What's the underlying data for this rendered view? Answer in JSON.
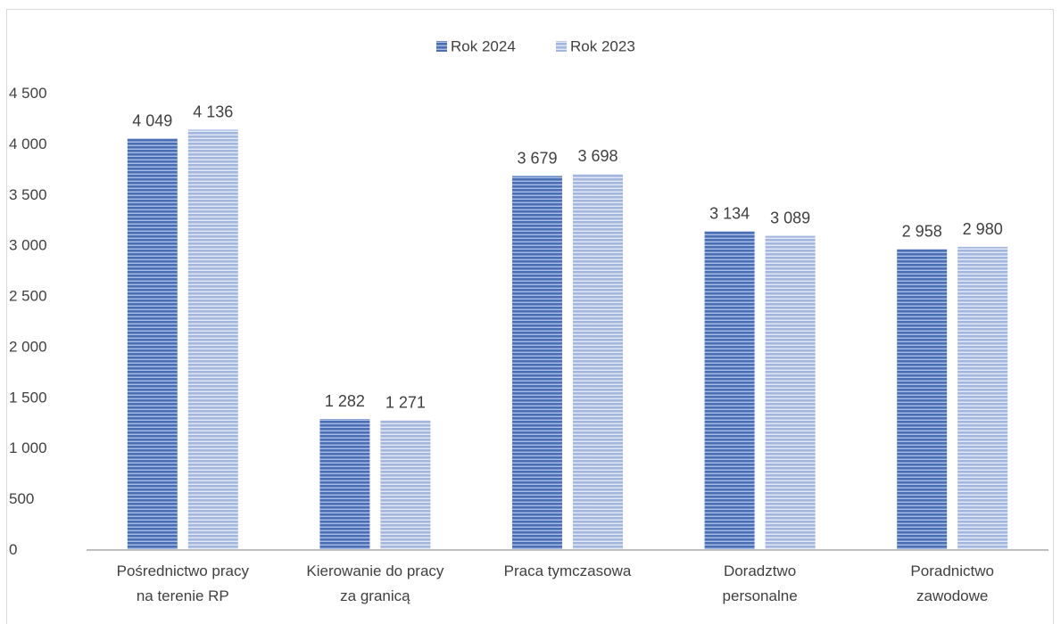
{
  "chart_data": {
    "type": "bar",
    "title": "",
    "xlabel": "",
    "ylabel": "",
    "categories": [
      [
        "Pośrednictwo pracy",
        "na terenie RP"
      ],
      [
        "Kierowanie do pracy",
        "za granicą"
      ],
      [
        "Praca tymczasowa"
      ],
      [
        "Doradztwo",
        "personalne"
      ],
      [
        "Poradnictwo",
        "zawodowe"
      ]
    ],
    "series": [
      {
        "name": "Rok 2024",
        "values": [
          4049,
          1282,
          3679,
          3134,
          2958
        ],
        "labels": [
          "4 049",
          "1 282",
          "3 679",
          "3 134",
          "2 958"
        ],
        "color": "#4a6fb5",
        "stripe": "#a9bde6"
      },
      {
        "name": "Rok 2023",
        "values": [
          4136,
          1271,
          3698,
          3089,
          2980
        ],
        "labels": [
          "4 136",
          "1 271",
          "3 698",
          "3 089",
          "2 980"
        ],
        "color": "#a3b6e0",
        "stripe": "#e3e9f7"
      }
    ],
    "ylim": [
      0,
      4500
    ],
    "yticks": [
      0,
      500,
      1000,
      1500,
      2000,
      2500,
      3000,
      3500,
      4000,
      4500
    ],
    "ytick_labels": [
      "0",
      "500",
      "1 000",
      "1 500",
      "2 000",
      "2 500",
      "3 000",
      "3 500",
      "4 000",
      "4 500"
    ],
    "grid": false,
    "legend_position": "top-center"
  }
}
